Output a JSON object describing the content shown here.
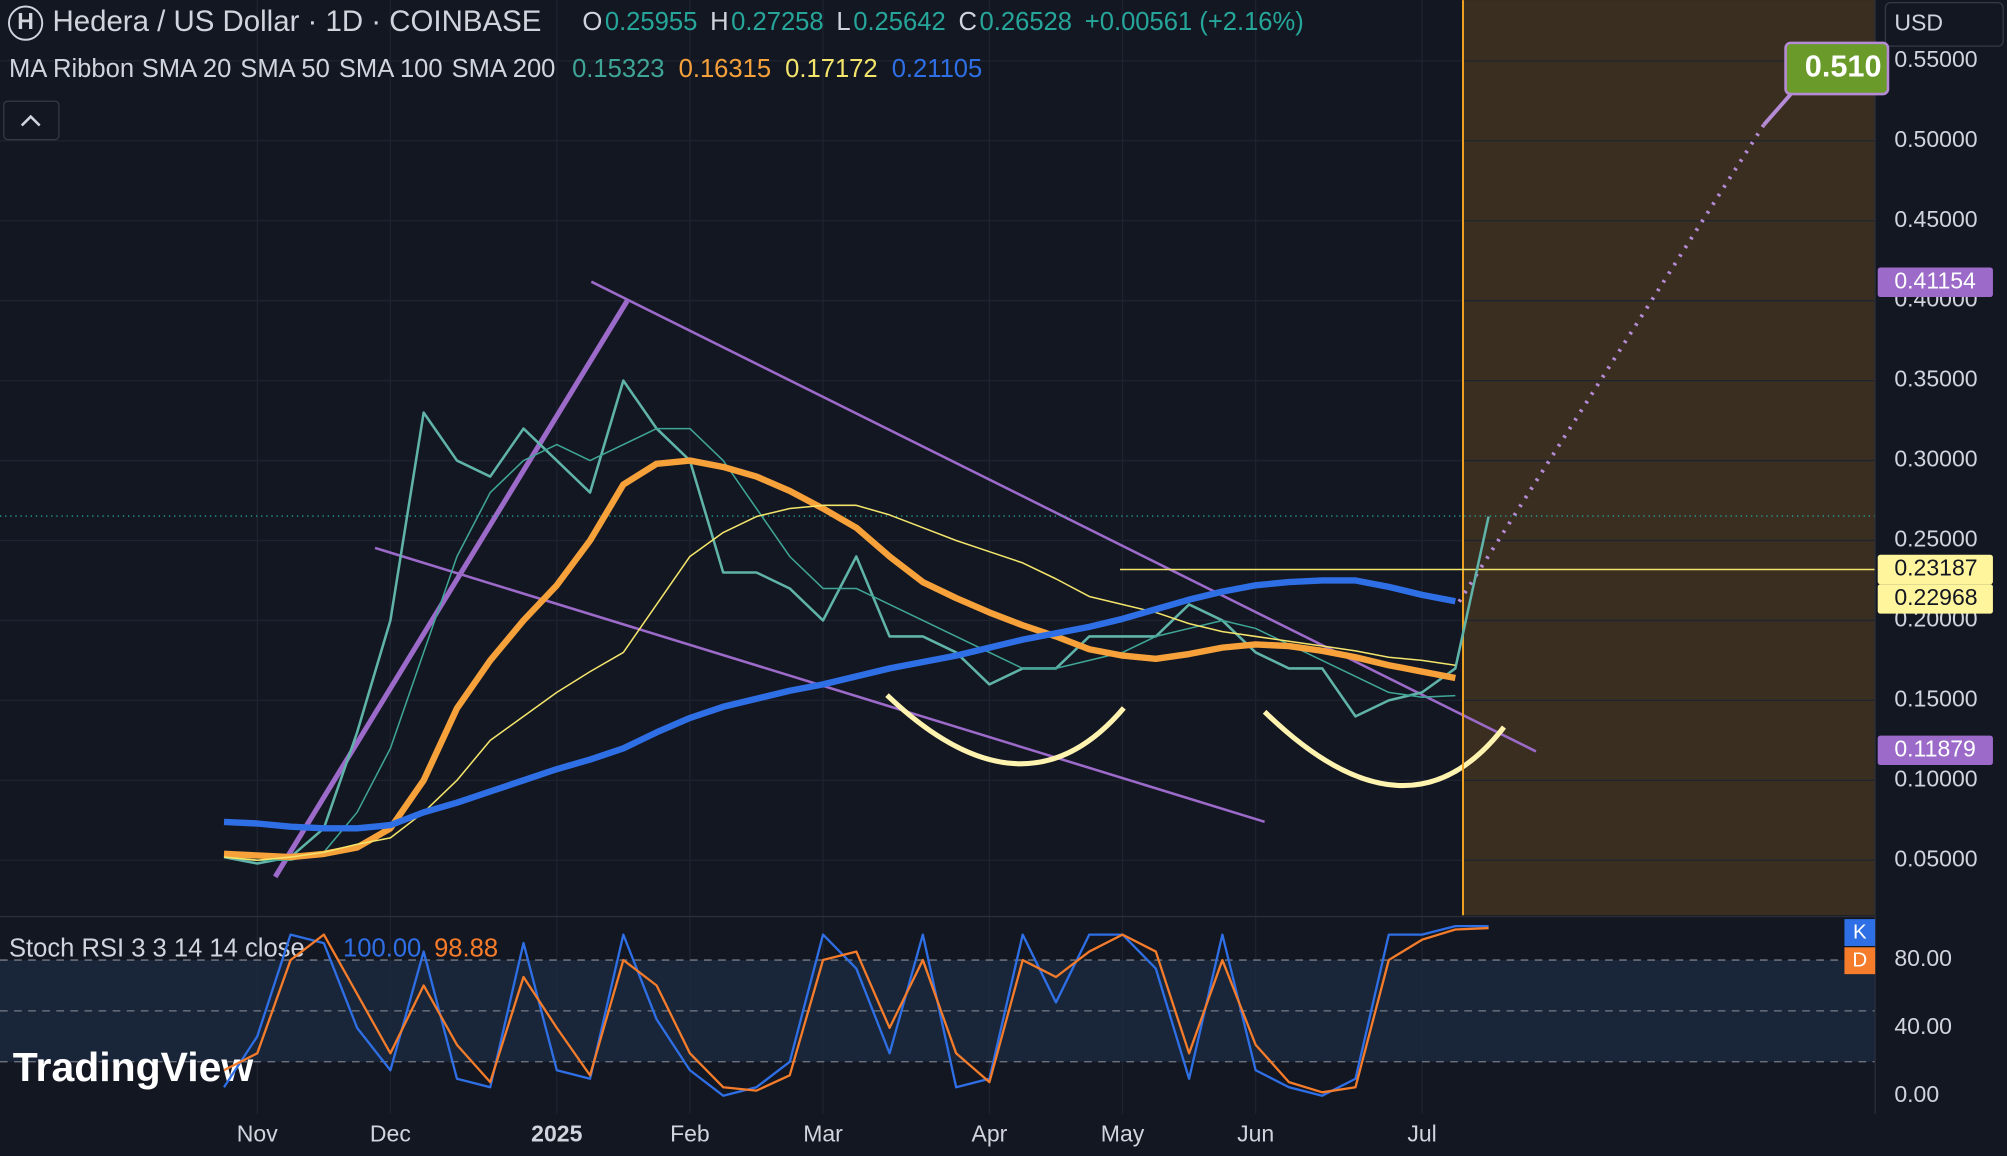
{
  "currency": "USD",
  "logo": "TradingView",
  "chart_data": [
    {
      "type": "line",
      "symbol_icon": "H",
      "title": "Hedera / US Dollar · 1D · COINBASE",
      "ohlc": [
        {
          "label": "O",
          "value": 0.25955
        },
        {
          "label": "H",
          "value": 0.27258
        },
        {
          "label": "L",
          "value": 0.25642
        },
        {
          "label": "C",
          "value": 0.26528
        }
      ],
      "change": "+0.00561 (+2.16%)",
      "indicator": "MA Ribbon",
      "categories": [
        null,
        "Nov",
        null,
        null,
        null,
        "Dec",
        null,
        null,
        null,
        null,
        "2025",
        null,
        null,
        null,
        "Feb",
        null,
        null,
        null,
        "Mar",
        null,
        null,
        null,
        null,
        "Apr",
        null,
        null,
        null,
        "May",
        null,
        null,
        null,
        "Jun",
        null,
        null,
        null,
        null,
        "Jul",
        null,
        null
      ],
      "values": [
        0.052,
        0.048,
        0.052,
        0.07,
        0.13,
        0.2,
        0.33,
        0.3,
        0.29,
        0.32,
        0.3,
        0.28,
        0.35,
        0.32,
        0.3,
        0.23,
        0.23,
        0.22,
        0.2,
        0.24,
        0.19,
        0.19,
        0.18,
        0.16,
        0.17,
        0.17,
        0.19,
        0.19,
        0.19,
        0.21,
        0.2,
        0.18,
        0.17,
        0.17,
        0.14,
        0.15,
        0.155,
        0.17,
        0.265
      ],
      "color": "#5fb3a8",
      "series": [
        {
          "name": "SMA 20",
          "color": "#3fa596",
          "line_width": 1.2,
          "legend_value": 0.15323,
          "values": [
            0.052,
            0.05,
            0.05,
            0.055,
            0.08,
            0.12,
            0.18,
            0.24,
            0.28,
            0.3,
            0.31,
            0.3,
            0.31,
            0.32,
            0.32,
            0.3,
            0.27,
            0.24,
            0.22,
            0.22,
            0.21,
            0.2,
            0.19,
            0.18,
            0.17,
            0.17,
            0.175,
            0.18,
            0.19,
            0.195,
            0.2,
            0.195,
            0.185,
            0.175,
            0.165,
            0.155,
            0.152,
            0.153,
            null
          ]
        },
        {
          "name": "SMA 50",
          "color": "#f7a13a",
          "line_width": 5,
          "legend_value": 0.16315,
          "values": [
            0.054,
            0.053,
            0.052,
            0.054,
            0.058,
            0.07,
            0.1,
            0.145,
            0.175,
            0.2,
            0.222,
            0.25,
            0.285,
            0.298,
            0.3,
            0.296,
            0.29,
            0.281,
            0.27,
            0.258,
            0.24,
            0.224,
            0.214,
            0.205,
            0.197,
            0.19,
            0.182,
            0.178,
            0.176,
            0.179,
            0.183,
            0.185,
            0.184,
            0.181,
            0.177,
            0.172,
            0.168,
            0.164,
            null
          ]
        },
        {
          "name": "SMA 100",
          "color": "#f3e46b",
          "line_width": 1.2,
          "legend_value": 0.17172,
          "values": [
            0.052,
            0.05,
            0.052,
            0.055,
            0.06,
            0.064,
            0.08,
            0.1,
            0.125,
            0.14,
            0.155,
            0.168,
            0.18,
            0.21,
            0.24,
            0.255,
            0.265,
            0.27,
            0.272,
            0.272,
            0.266,
            0.258,
            0.25,
            0.243,
            0.236,
            0.226,
            0.215,
            0.21,
            0.205,
            0.198,
            0.193,
            0.19,
            0.187,
            0.184,
            0.181,
            0.177,
            0.175,
            0.172,
            null
          ]
        },
        {
          "name": "SMA 200",
          "color": "#2f6fe6",
          "line_width": 5,
          "legend_value": 0.21105,
          "values": [
            0.074,
            0.073,
            0.071,
            0.07,
            0.07,
            0.072,
            0.08,
            0.086,
            0.093,
            0.1,
            0.107,
            0.113,
            0.12,
            0.13,
            0.139,
            0.146,
            0.151,
            0.156,
            0.16,
            0.165,
            0.17,
            0.174,
            0.178,
            0.183,
            0.188,
            0.192,
            0.196,
            0.201,
            0.207,
            0.213,
            0.218,
            0.222,
            0.224,
            0.225,
            0.225,
            0.221,
            0.216,
            0.212,
            null
          ]
        }
      ],
      "ylim": [
        0.0156,
        0.588
      ],
      "yticks": [
        {
          "value": 0.05,
          "label": "0.05000"
        },
        {
          "value": 0.1,
          "label": "0.10000"
        },
        {
          "value": 0.15,
          "label": "0.15000"
        },
        {
          "value": 0.2,
          "label": "0.20000"
        },
        {
          "value": 0.25,
          "label": "0.25000"
        },
        {
          "value": 0.3,
          "label": "0.30000"
        },
        {
          "value": 0.35,
          "label": "0.35000"
        },
        {
          "value": 0.4,
          "label": "0.40000"
        },
        {
          "value": 0.45,
          "label": "0.45000"
        },
        {
          "value": 0.5,
          "label": "0.50000"
        },
        {
          "value": 0.55,
          "label": "0.55000"
        }
      ],
      "price_labels": [
        {
          "value": 0.41154,
          "color": "#9c6ac9"
        },
        {
          "value": 0.23187,
          "color": "#fff59d"
        },
        {
          "value": 0.22968,
          "color": "#fff59d"
        },
        {
          "value": 0.11879,
          "color": "#9c6ac9"
        }
      ],
      "target": {
        "value": 0.51,
        "label": "0.510",
        "color": "#6a9a2a"
      },
      "grid": true
    },
    {
      "type": "line",
      "title": "Stoch RSI 3 3 14 14 close",
      "series": [
        {
          "name": "K",
          "color": "#2f6fe6",
          "last_label": "100.00",
          "values": [
            5,
            35,
            95,
            90,
            40,
            15,
            85,
            10,
            5,
            90,
            15,
            10,
            95,
            45,
            15,
            0,
            5,
            20,
            95,
            75,
            25,
            95,
            5,
            10,
            95,
            55,
            95,
            95,
            75,
            10,
            95,
            15,
            5,
            0,
            10,
            95,
            95,
            100,
            100
          ]
        },
        {
          "name": "D",
          "color": "#f57c2a",
          "last_label": "98.88",
          "values": [
            15,
            25,
            80,
            95,
            60,
            25,
            65,
            30,
            8,
            70,
            40,
            12,
            80,
            65,
            25,
            5,
            3,
            12,
            80,
            85,
            40,
            80,
            25,
            8,
            80,
            70,
            85,
            95,
            85,
            25,
            80,
            30,
            8,
            2,
            5,
            80,
            92,
            98,
            98.88
          ]
        }
      ],
      "ylim": [
        -10.6,
        104.9
      ],
      "yticks": [
        {
          "value": 0,
          "label": "0.00"
        },
        {
          "value": 40,
          "label": "40.00"
        },
        {
          "value": 80,
          "label": "80.00"
        }
      ],
      "hlines": [
        20,
        50,
        80
      ]
    }
  ]
}
